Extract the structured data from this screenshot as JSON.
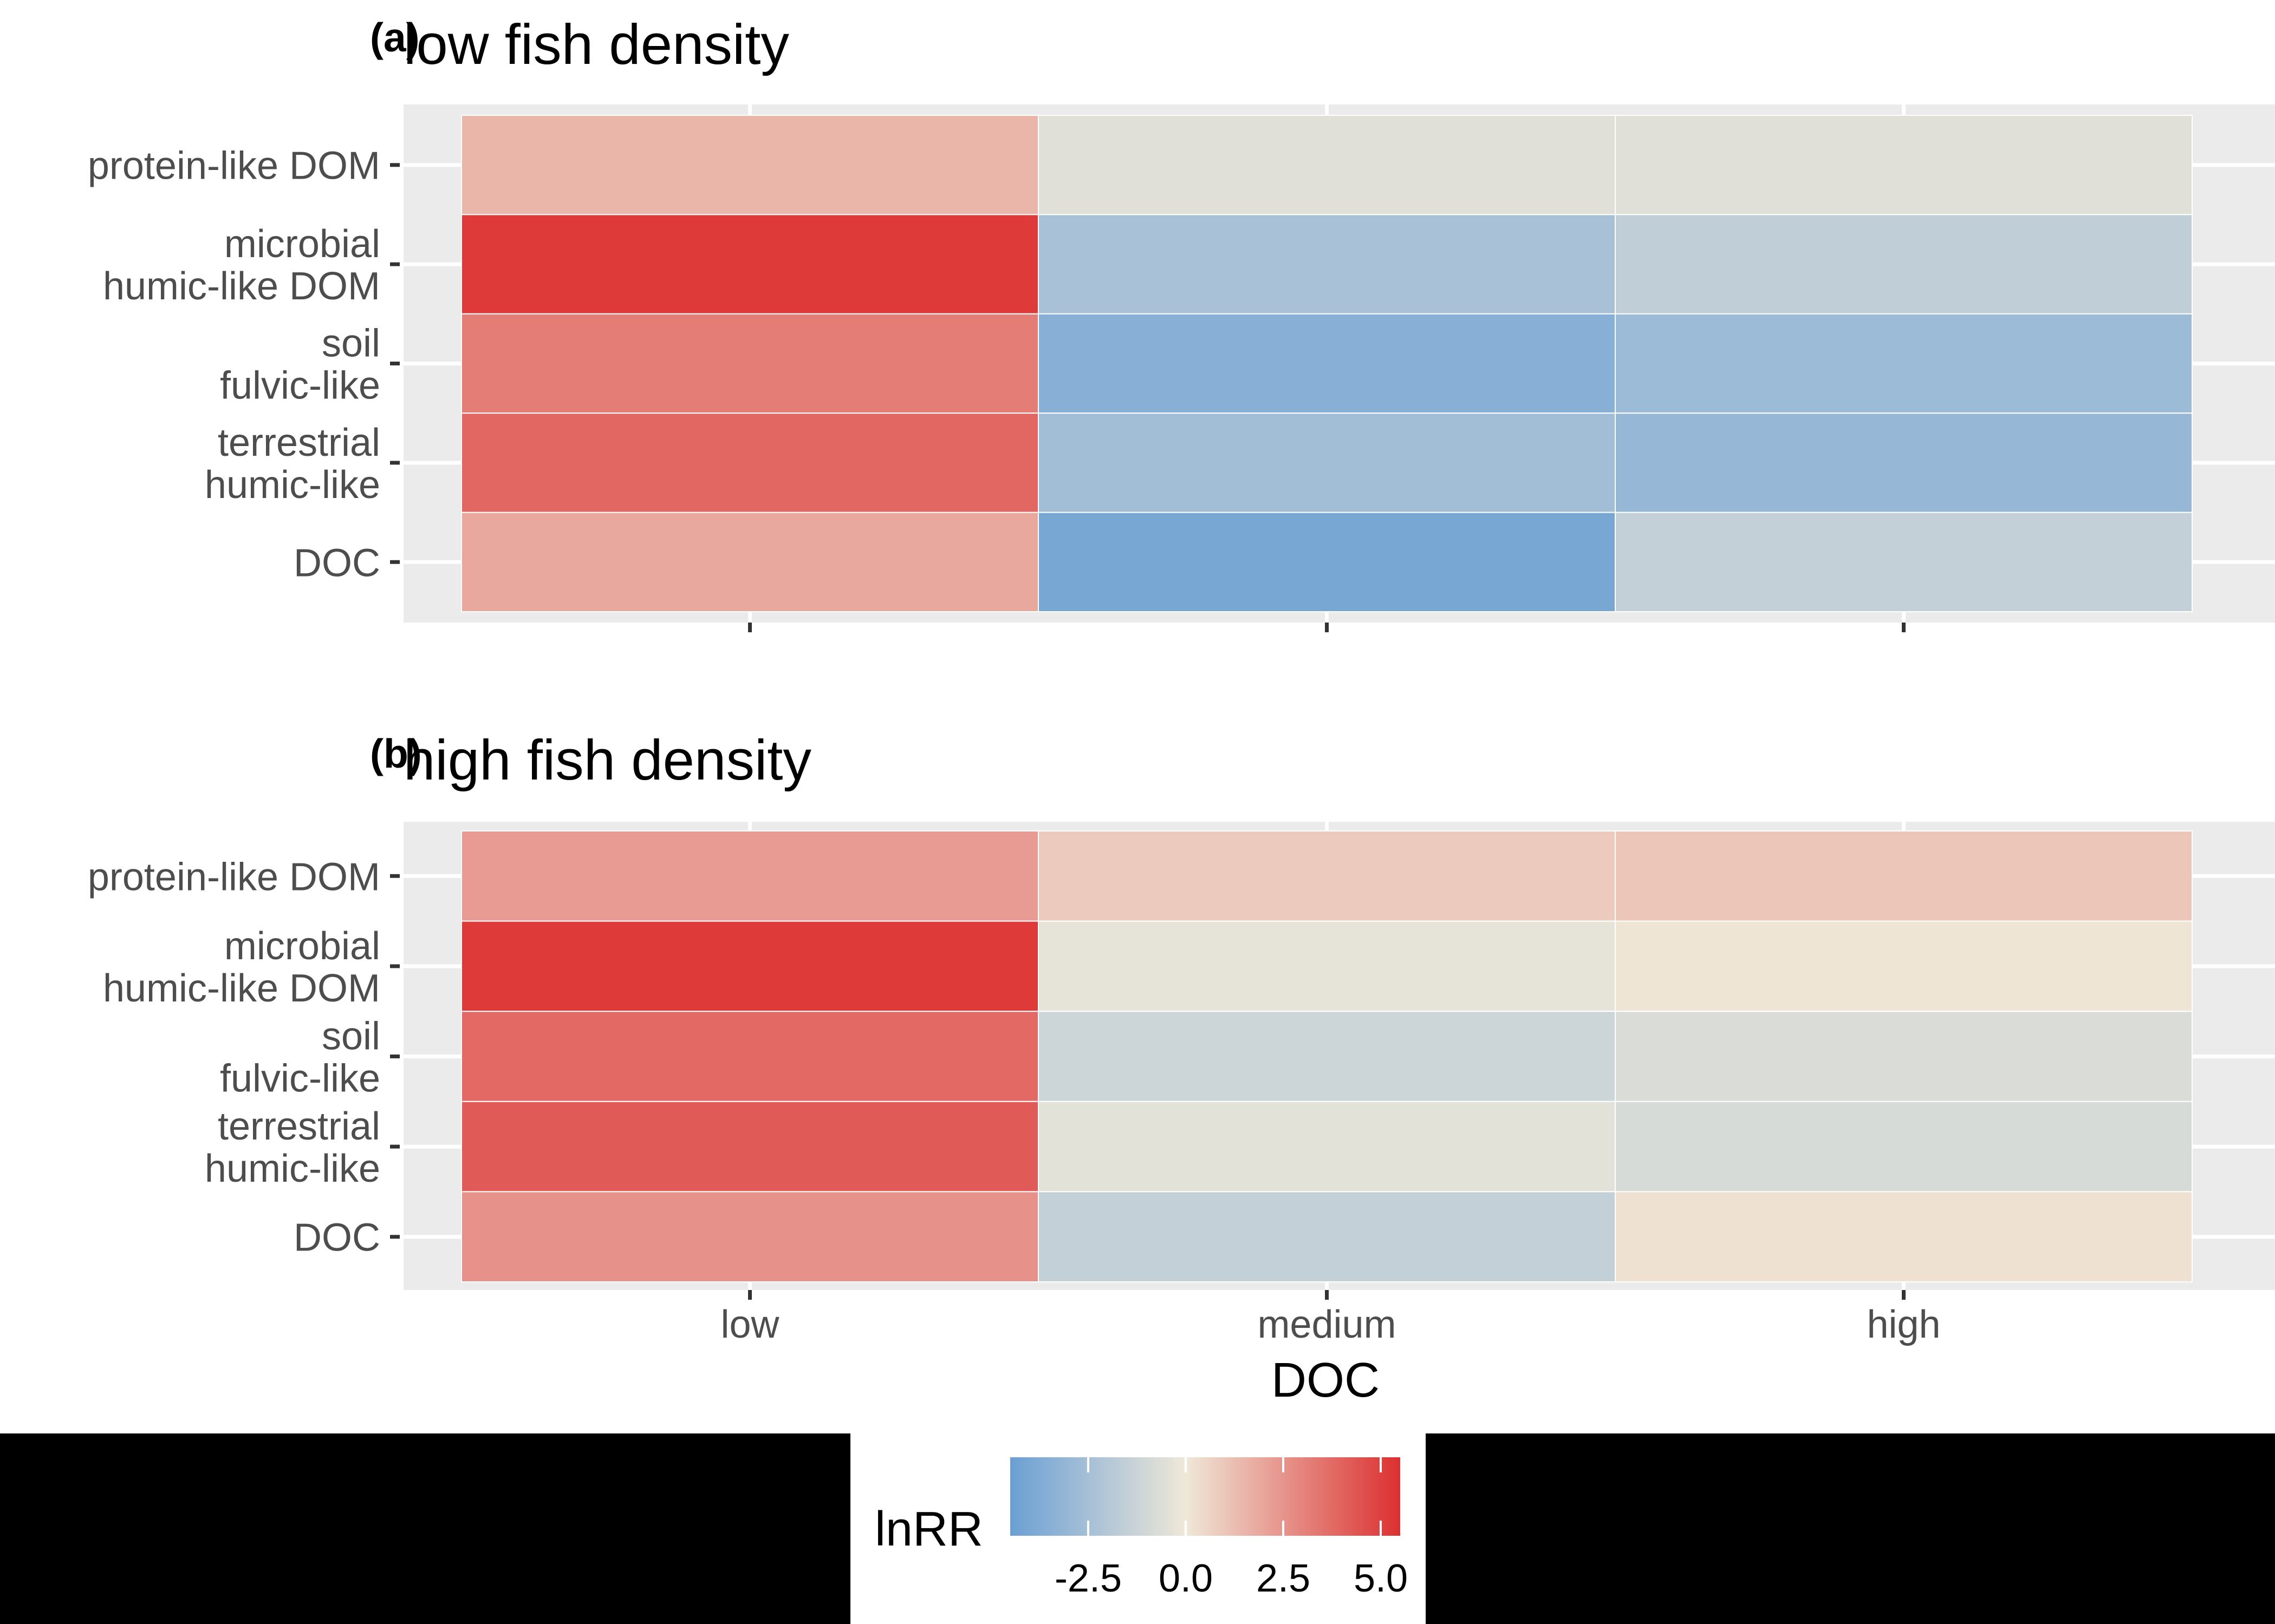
{
  "chart_data": [
    {
      "type": "heatmap",
      "tag": "(a)",
      "title": "low fish density",
      "xlabel": "",
      "ylabel": "",
      "x_categories": [
        "low",
        "medium",
        "high"
      ],
      "x_tick_labels_shown": false,
      "y_categories": [
        "protein-like DOM",
        "microbial\nhumic-like DOM",
        "soil\nfulvic-like",
        "terrestrial\nhumic-like",
        "DOC"
      ],
      "values": [
        [
          1.5,
          -0.5,
          -0.5
        ],
        [
          5.2,
          -2.4,
          -1.6
        ],
        [
          3.2,
          -3.5,
          -2.8
        ],
        [
          3.9,
          -2.6,
          -3.0
        ],
        [
          1.9,
          -4.0,
          -1.5
        ]
      ],
      "grid": true
    },
    {
      "type": "heatmap",
      "tag": "(b)",
      "title": "high fish density",
      "xlabel": "DOC",
      "ylabel": "",
      "x_categories": [
        "low",
        "medium",
        "high"
      ],
      "x_tick_labels_shown": true,
      "y_categories": [
        "protein-like DOM",
        "microbial\nhumic-like DOM",
        "soil\nfulvic-like",
        "terrestrial\nhumic-like",
        "DOC"
      ],
      "values": [
        [
          2.3,
          0.9,
          1.0
        ],
        [
          5.2,
          -0.3,
          0.1
        ],
        [
          3.8,
          -1.2,
          -0.7
        ],
        [
          4.2,
          -0.4,
          -0.8
        ],
        [
          2.6,
          -1.5,
          0.2
        ]
      ],
      "grid": true
    }
  ],
  "legend": {
    "title": "lnRR",
    "ticks": [
      -2.5,
      0.0,
      2.5,
      5.0
    ],
    "tick_labels": [
      "-2.5",
      "0.0",
      "2.5",
      "5.0"
    ],
    "limits": [
      -4.5,
      5.5
    ],
    "placement": "bottom"
  },
  "colors": {
    "low": "#6a9fd4",
    "mid": "#efe8d8",
    "high": "#dc3030",
    "panel_background": "#ebebeb",
    "gridline": "#ffffff",
    "outer_background": "#000000",
    "plot_background": "#ffffff"
  }
}
